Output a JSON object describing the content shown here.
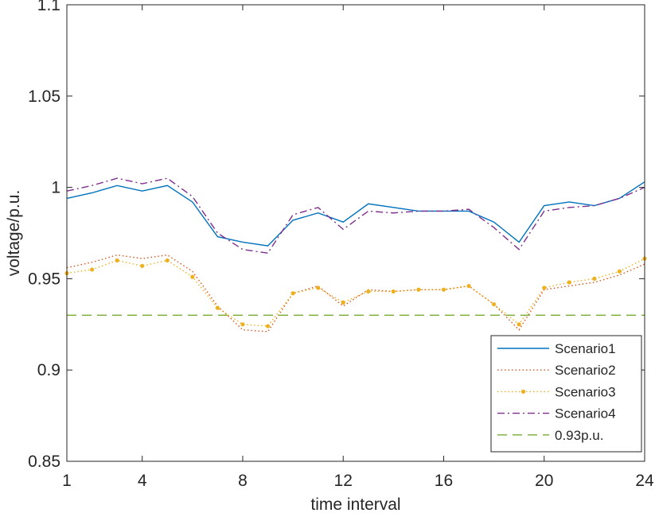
{
  "chart_data": {
    "type": "line",
    "title": "",
    "xlabel": "time interval",
    "ylabel": "voltage/p.u.",
    "xlim": [
      1,
      24
    ],
    "ylim": [
      0.85,
      1.1
    ],
    "xticks": [
      1,
      4,
      8,
      12,
      16,
      20,
      24
    ],
    "xtick_labels": [
      "1",
      "4",
      "8",
      "12",
      "16",
      "20",
      "24"
    ],
    "yticks": [
      0.85,
      0.9,
      0.95,
      1.0,
      1.05,
      1.1
    ],
    "ytick_labels": [
      "0.85",
      "0.9",
      "0.95",
      "1",
      "1.05",
      "1.1"
    ],
    "grid": false,
    "legend_position": "bottom-right",
    "x": [
      1,
      2,
      3,
      4,
      5,
      6,
      7,
      8,
      9,
      10,
      11,
      12,
      13,
      14,
      15,
      16,
      17,
      18,
      19,
      20,
      21,
      22,
      23,
      24
    ],
    "series": [
      {
        "name": "Scenario1",
        "style": "solid",
        "color": "#0072BD",
        "values": [
          0.994,
          0.997,
          1.001,
          0.998,
          1.001,
          0.992,
          0.973,
          0.97,
          0.968,
          0.982,
          0.986,
          0.981,
          0.991,
          0.989,
          0.987,
          0.987,
          0.987,
          0.981,
          0.97,
          0.99,
          0.992,
          0.99,
          0.994,
          1.003
        ]
      },
      {
        "name": "Scenario2",
        "style": "dotted",
        "color": "#D95319",
        "values": [
          0.956,
          0.959,
          0.963,
          0.961,
          0.963,
          0.954,
          0.935,
          0.922,
          0.921,
          0.942,
          0.946,
          0.935,
          0.944,
          0.943,
          0.944,
          0.944,
          0.946,
          0.936,
          0.922,
          0.944,
          0.946,
          0.948,
          0.952,
          0.958
        ]
      },
      {
        "name": "Scenario3",
        "style": "dotted-marker",
        "color": "#EDB120",
        "values": [
          0.953,
          0.955,
          0.96,
          0.957,
          0.96,
          0.951,
          0.934,
          0.925,
          0.924,
          0.942,
          0.945,
          0.937,
          0.943,
          0.943,
          0.944,
          0.944,
          0.946,
          0.936,
          0.925,
          0.945,
          0.948,
          0.95,
          0.954,
          0.961
        ]
      },
      {
        "name": "Scenario4",
        "style": "dashdot",
        "color": "#7E2F8E",
        "values": [
          0.998,
          1.001,
          1.005,
          1.002,
          1.005,
          0.995,
          0.975,
          0.966,
          0.964,
          0.985,
          0.989,
          0.977,
          0.987,
          0.986,
          0.987,
          0.987,
          0.988,
          0.978,
          0.966,
          0.987,
          0.989,
          0.99,
          0.994,
          1.0
        ]
      },
      {
        "name": "0.93p.u.",
        "style": "dashed",
        "color": "#77AC30",
        "values": [
          0.93,
          0.93,
          0.93,
          0.93,
          0.93,
          0.93,
          0.93,
          0.93,
          0.93,
          0.93,
          0.93,
          0.93,
          0.93,
          0.93,
          0.93,
          0.93,
          0.93,
          0.93,
          0.93,
          0.93,
          0.93,
          0.93,
          0.93,
          0.93
        ]
      }
    ]
  }
}
